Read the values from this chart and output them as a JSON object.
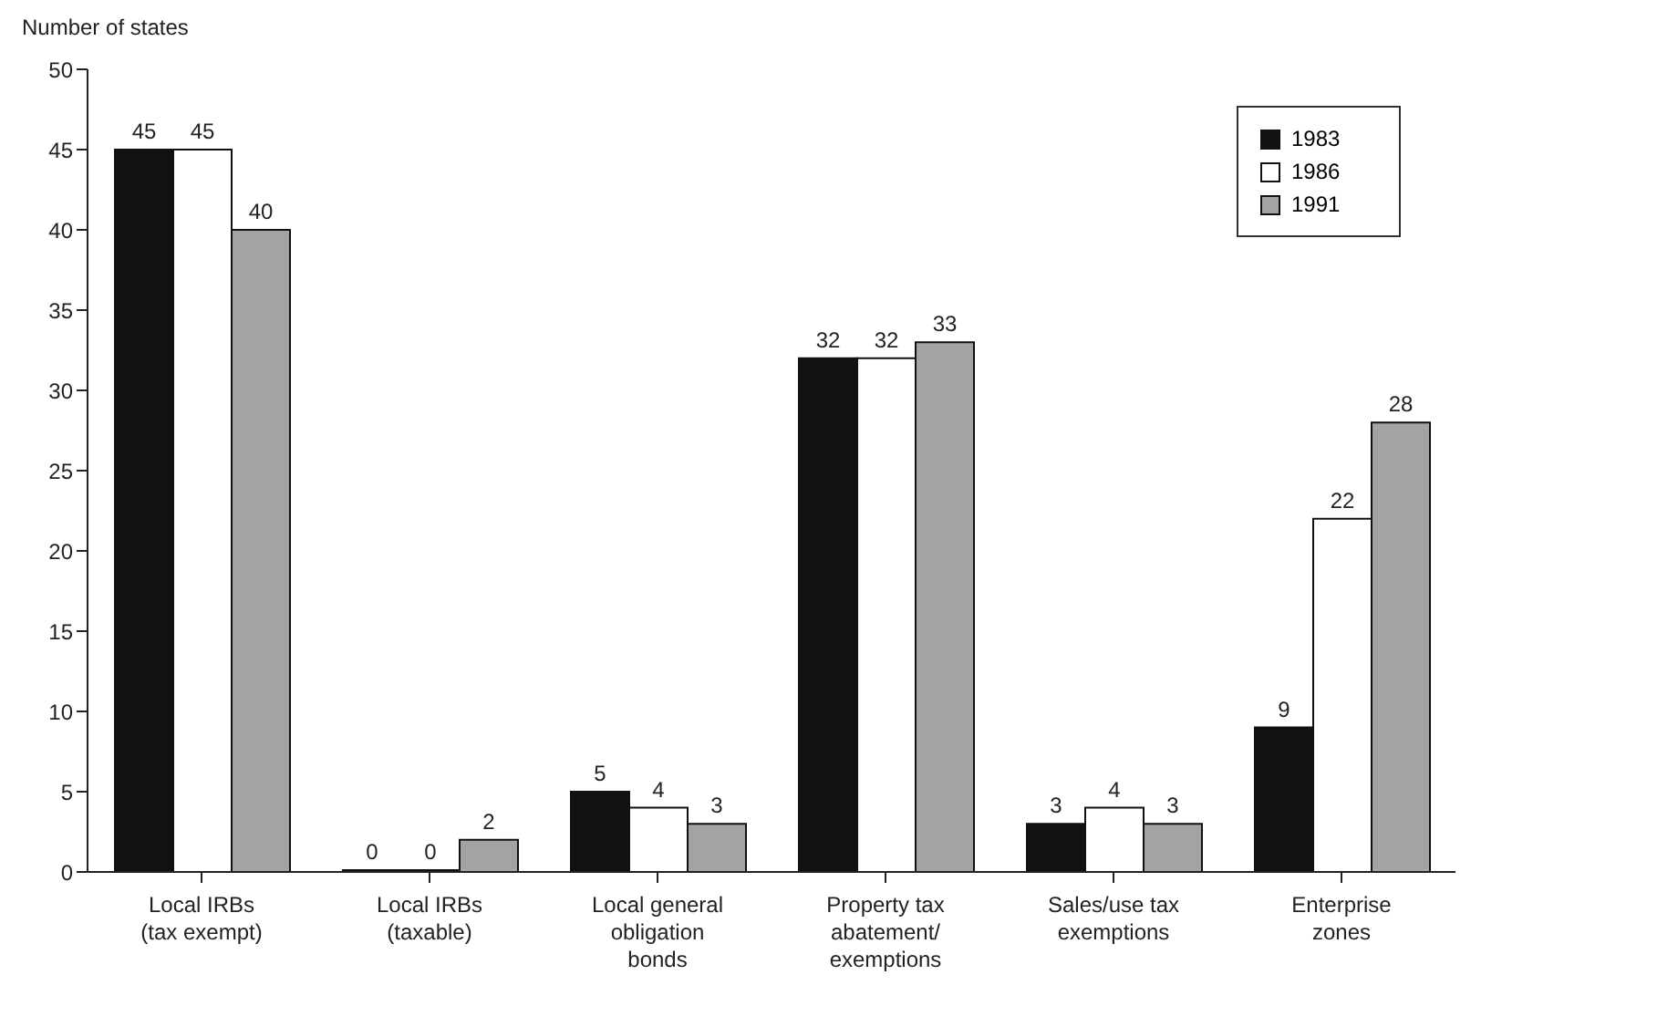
{
  "chart_data": {
    "type": "bar",
    "ylabel": "Number of states",
    "categories": [
      "Local IRBs\n(tax exempt)",
      "Local IRBs\n(taxable)",
      "Local general\nobligation\nbonds",
      "Property tax\nabatement/\nexemptions",
      "Sales/use tax\nexemptions",
      "Enterprise\nzones"
    ],
    "series": [
      {
        "name": "1983",
        "color": "#111111",
        "values": [
          45,
          0,
          5,
          32,
          3,
          9
        ]
      },
      {
        "name": "1986",
        "color": "#ffffff",
        "values": [
          45,
          0,
          4,
          32,
          4,
          22
        ]
      },
      {
        "name": "1991",
        "color": "#a3a3a3",
        "values": [
          40,
          2,
          3,
          33,
          3,
          28
        ]
      }
    ],
    "ylim": [
      0,
      50
    ],
    "yticks": [
      0,
      5,
      10,
      15,
      20,
      25,
      30,
      35,
      40,
      45,
      50
    ],
    "grid": false,
    "legend": "top right",
    "data_labels": true
  }
}
